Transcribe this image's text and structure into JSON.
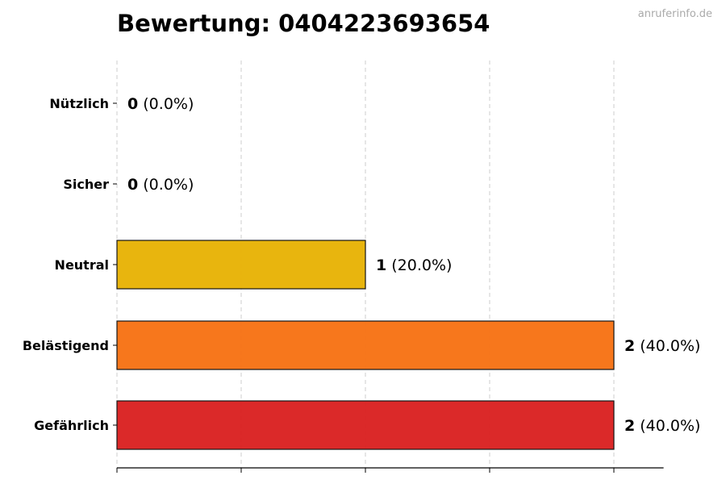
{
  "chart_data": {
    "type": "bar",
    "orientation": "horizontal",
    "title": "Bewertung: 0404223693654",
    "watermark": "anruferinfo.de",
    "categories": [
      "Nützlich",
      "Sicher",
      "Neutral",
      "Belästigend",
      "Gefährlich"
    ],
    "values": [
      0,
      0,
      1,
      2,
      2
    ],
    "value_labels": [
      {
        "count": "0",
        "percent": "(0.0%)"
      },
      {
        "count": "0",
        "percent": "(0.0%)"
      },
      {
        "count": "1",
        "percent": "(20.0%)"
      },
      {
        "count": "2",
        "percent": "(40.0%)"
      },
      {
        "count": "2",
        "percent": "(40.0%)"
      }
    ],
    "colors": [
      "#2ca02c",
      "#1f77b4",
      "#E8B40A",
      "#F77518",
      "#DB2525"
    ],
    "xlim": [
      0,
      2.2
    ],
    "x_gridlines": [
      0,
      0.5,
      1,
      1.5,
      2
    ],
    "grid": true,
    "xlabel": "",
    "ylabel": ""
  }
}
